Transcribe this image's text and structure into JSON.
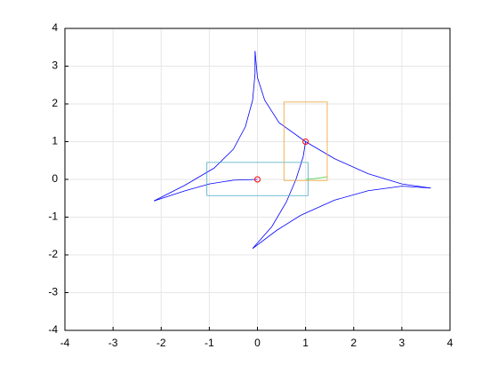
{
  "chart_data": {
    "type": "line",
    "xlim": [
      -4,
      4
    ],
    "ylim": [
      -4,
      4
    ],
    "xticks": [
      -4,
      -3,
      -2,
      -1,
      0,
      1,
      2,
      3,
      4
    ],
    "yticks": [
      -4,
      -3,
      -2,
      -1,
      0,
      1,
      2,
      3,
      4
    ],
    "grid": true,
    "series": [
      {
        "color": "#0000ff",
        "x": [
          -2.15,
          -1.5,
          -0.9,
          -0.5,
          -0.25,
          -0.1,
          -0.05,
          -0.05
        ],
        "y": [
          -0.57,
          -0.15,
          0.3,
          0.8,
          1.4,
          2.1,
          2.8,
          3.4
        ]
      },
      {
        "color": "#0000ff",
        "x": [
          -0.05,
          0,
          0.15,
          0.45,
          1,
          1.6,
          2.3,
          3,
          3.6
        ],
        "y": [
          3.4,
          2.7,
          2.1,
          1.5,
          1,
          0.55,
          0.15,
          -0.12,
          -0.23
        ]
      },
      {
        "color": "#0000ff",
        "x": [
          3.6,
          3,
          2.3,
          1.6,
          0.9,
          0.4,
          -0.1
        ],
        "y": [
          -0.23,
          -0.18,
          -0.3,
          -0.55,
          -0.95,
          -1.35,
          -1.83
        ]
      },
      {
        "color": "#0000ff",
        "x": [
          -0.1,
          0.3,
          0.6,
          0.8,
          0.95,
          1
        ],
        "y": [
          -1.83,
          -1.25,
          -0.6,
          0,
          0.6,
          1
        ]
      },
      {
        "color": "#0000ff",
        "x": [
          -2.15,
          -1.5,
          -1,
          -0.5,
          0
        ],
        "y": [
          -0.57,
          -0.3,
          -0.12,
          -0.02,
          0
        ]
      },
      {
        "color": "#33cc33",
        "x": [
          1,
          1.25,
          1.45
        ],
        "y": [
          0,
          0.03,
          0.07
        ]
      },
      {
        "color": "#4aa8c8",
        "x": [
          -1.05,
          1.05,
          1.05,
          -1.05,
          -1.05
        ],
        "y": [
          -0.43,
          -0.43,
          0.45,
          0.45,
          -0.43
        ]
      },
      {
        "color": "#f0a030",
        "x": [
          0.55,
          1.45,
          1.45,
          0.55,
          0.55
        ],
        "y": [
          -0.03,
          -0.03,
          2.05,
          2.05,
          -0.03
        ]
      },
      {
        "color": "#ff0000",
        "marker": "circle",
        "x": [
          0,
          1
        ],
        "y": [
          0,
          1
        ]
      }
    ]
  }
}
